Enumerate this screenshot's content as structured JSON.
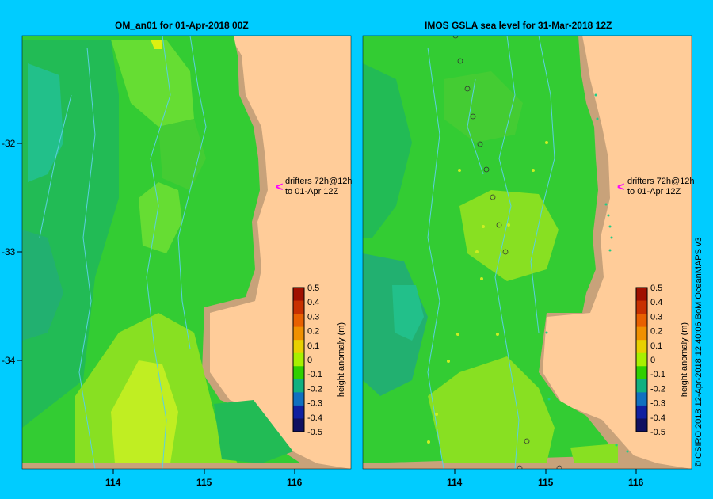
{
  "panels": [
    {
      "title": "OM_an01  for 01-Apr-2018 00Z"
    },
    {
      "title": "IMOS  GSLA sea level  for 31-Mar-2018 12Z"
    }
  ],
  "map": {
    "x_ticks": [
      "114",
      "115",
      "116"
    ],
    "y_ticks": [
      "-32",
      "-33",
      "-34"
    ],
    "drifter_label_line1": "drifters 72h@12h",
    "drifter_label_line2": "to 01-Apr 12Z",
    "drifter_arrow": "<",
    "land_color": "#ffcc99",
    "shelf_color": "#c8a27a",
    "contour_color": "#5ad0e0"
  },
  "colorbar": {
    "label": "height anomaly (m)",
    "ticks": [
      "0.5",
      "0.4",
      "0.3",
      "0.2",
      "0.1",
      "0",
      "-0.1",
      "-0.2",
      "-0.3",
      "-0.4",
      "-0.5"
    ],
    "colors": [
      "#a01000",
      "#c83000",
      "#e86000",
      "#f09000",
      "#e8d000",
      "#a8f000",
      "#30d000",
      "#10b080",
      "#1070c0",
      "#1020a0",
      "#101060"
    ]
  },
  "credit": "© CSIRO 2018   12-Apr-2018 12:40:06 BoM OceanMAPS v3"
}
